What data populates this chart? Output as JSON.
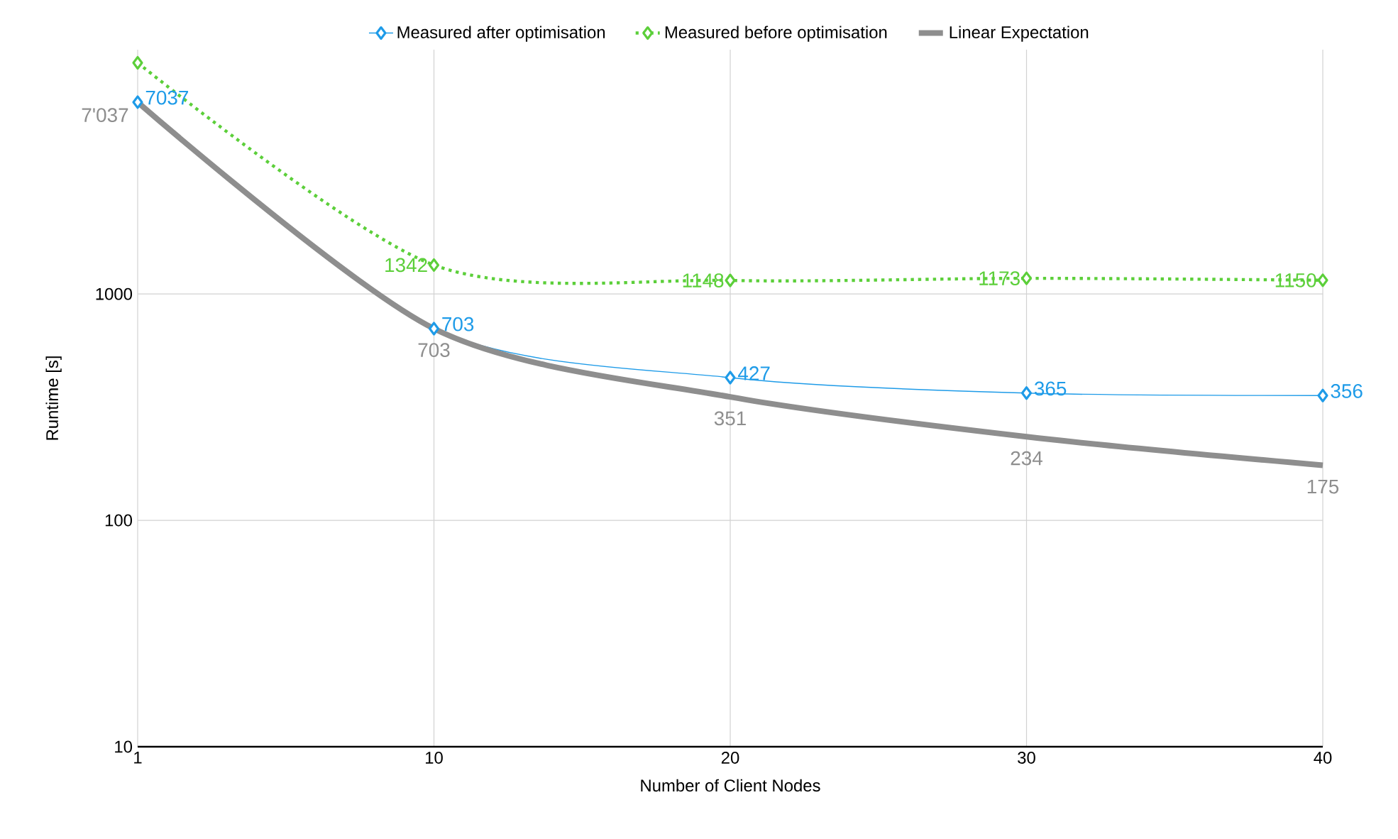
{
  "chart_data": {
    "type": "line",
    "xlabel": "Number of Client Nodes",
    "ylabel": "Runtime [s]",
    "categories": [
      "1",
      "10",
      "20",
      "30",
      "40"
    ],
    "log": "y",
    "ylim": [
      10,
      12000
    ],
    "yticks": [
      10,
      100,
      1000
    ],
    "grid": true,
    "legend": "top",
    "series": [
      {
        "name": "Measured after optimisation",
        "color": "#1e9be8",
        "marker": "diamond",
        "line_style": "solid",
        "values": [
          7037,
          703,
          427,
          365,
          356
        ],
        "value_labels": [
          "7037",
          "703",
          "427",
          "365",
          "356"
        ]
      },
      {
        "name": "Measured before optimisation",
        "color": "#5ccf3a",
        "marker": "diamond",
        "line_style": "dotted",
        "values": [
          10500,
          1342,
          1148,
          1173,
          1150
        ],
        "value_labels": [
          null,
          "1342",
          "1148",
          "1173",
          "1150"
        ]
      },
      {
        "name": "Linear Expectation",
        "color": "#8e8e8e",
        "marker": "none",
        "line_style": "solid",
        "values": [
          7037,
          703,
          351,
          234,
          175
        ],
        "value_labels": [
          "7'037",
          "703",
          "351",
          "234",
          "175"
        ]
      }
    ]
  }
}
